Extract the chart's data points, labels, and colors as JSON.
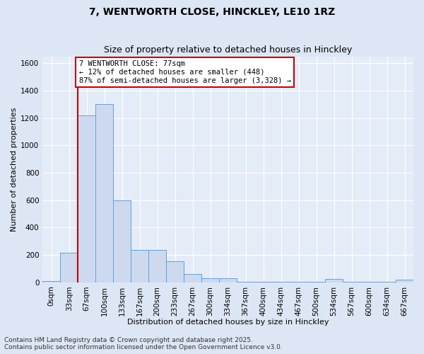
{
  "title": "7, WENTWORTH CLOSE, HINCKLEY, LE10 1RZ",
  "subtitle": "Size of property relative to detached houses in Hinckley",
  "xlabel": "Distribution of detached houses by size in Hinckley",
  "ylabel": "Number of detached properties",
  "bar_color": "#ccd9ee",
  "bar_edge_color": "#6a9fd8",
  "background_color": "#dde6f5",
  "plot_bg_color": "#e4ecf7",
  "grid_color": "#ffffff",
  "categories": [
    "0sqm",
    "33sqm",
    "67sqm",
    "100sqm",
    "133sqm",
    "167sqm",
    "200sqm",
    "233sqm",
    "267sqm",
    "300sqm",
    "334sqm",
    "367sqm",
    "400sqm",
    "434sqm",
    "467sqm",
    "500sqm",
    "534sqm",
    "567sqm",
    "600sqm",
    "634sqm",
    "667sqm"
  ],
  "values": [
    10,
    215,
    1220,
    1300,
    600,
    235,
    235,
    155,
    60,
    30,
    30,
    5,
    5,
    5,
    5,
    5,
    25,
    5,
    5,
    5,
    20
  ],
  "ylim": [
    0,
    1650
  ],
  "yticks": [
    0,
    200,
    400,
    600,
    800,
    1000,
    1200,
    1400,
    1600
  ],
  "property_bin_index": 2,
  "annotation_text": "7 WENTWORTH CLOSE: 77sqm\n← 12% of detached houses are smaller (448)\n87% of semi-detached houses are larger (3,328) →",
  "annotation_box_color": "#ffffff",
  "annotation_box_edge": "#cc0000",
  "vertical_line_color": "#cc0000",
  "footer_line1": "Contains HM Land Registry data © Crown copyright and database right 2025.",
  "footer_line2": "Contains public sector information licensed under the Open Government Licence v3.0.",
  "title_fontsize": 10,
  "subtitle_fontsize": 9,
  "axis_label_fontsize": 8,
  "tick_fontsize": 7.5,
  "annotation_fontsize": 7.5,
  "footer_fontsize": 6.5
}
